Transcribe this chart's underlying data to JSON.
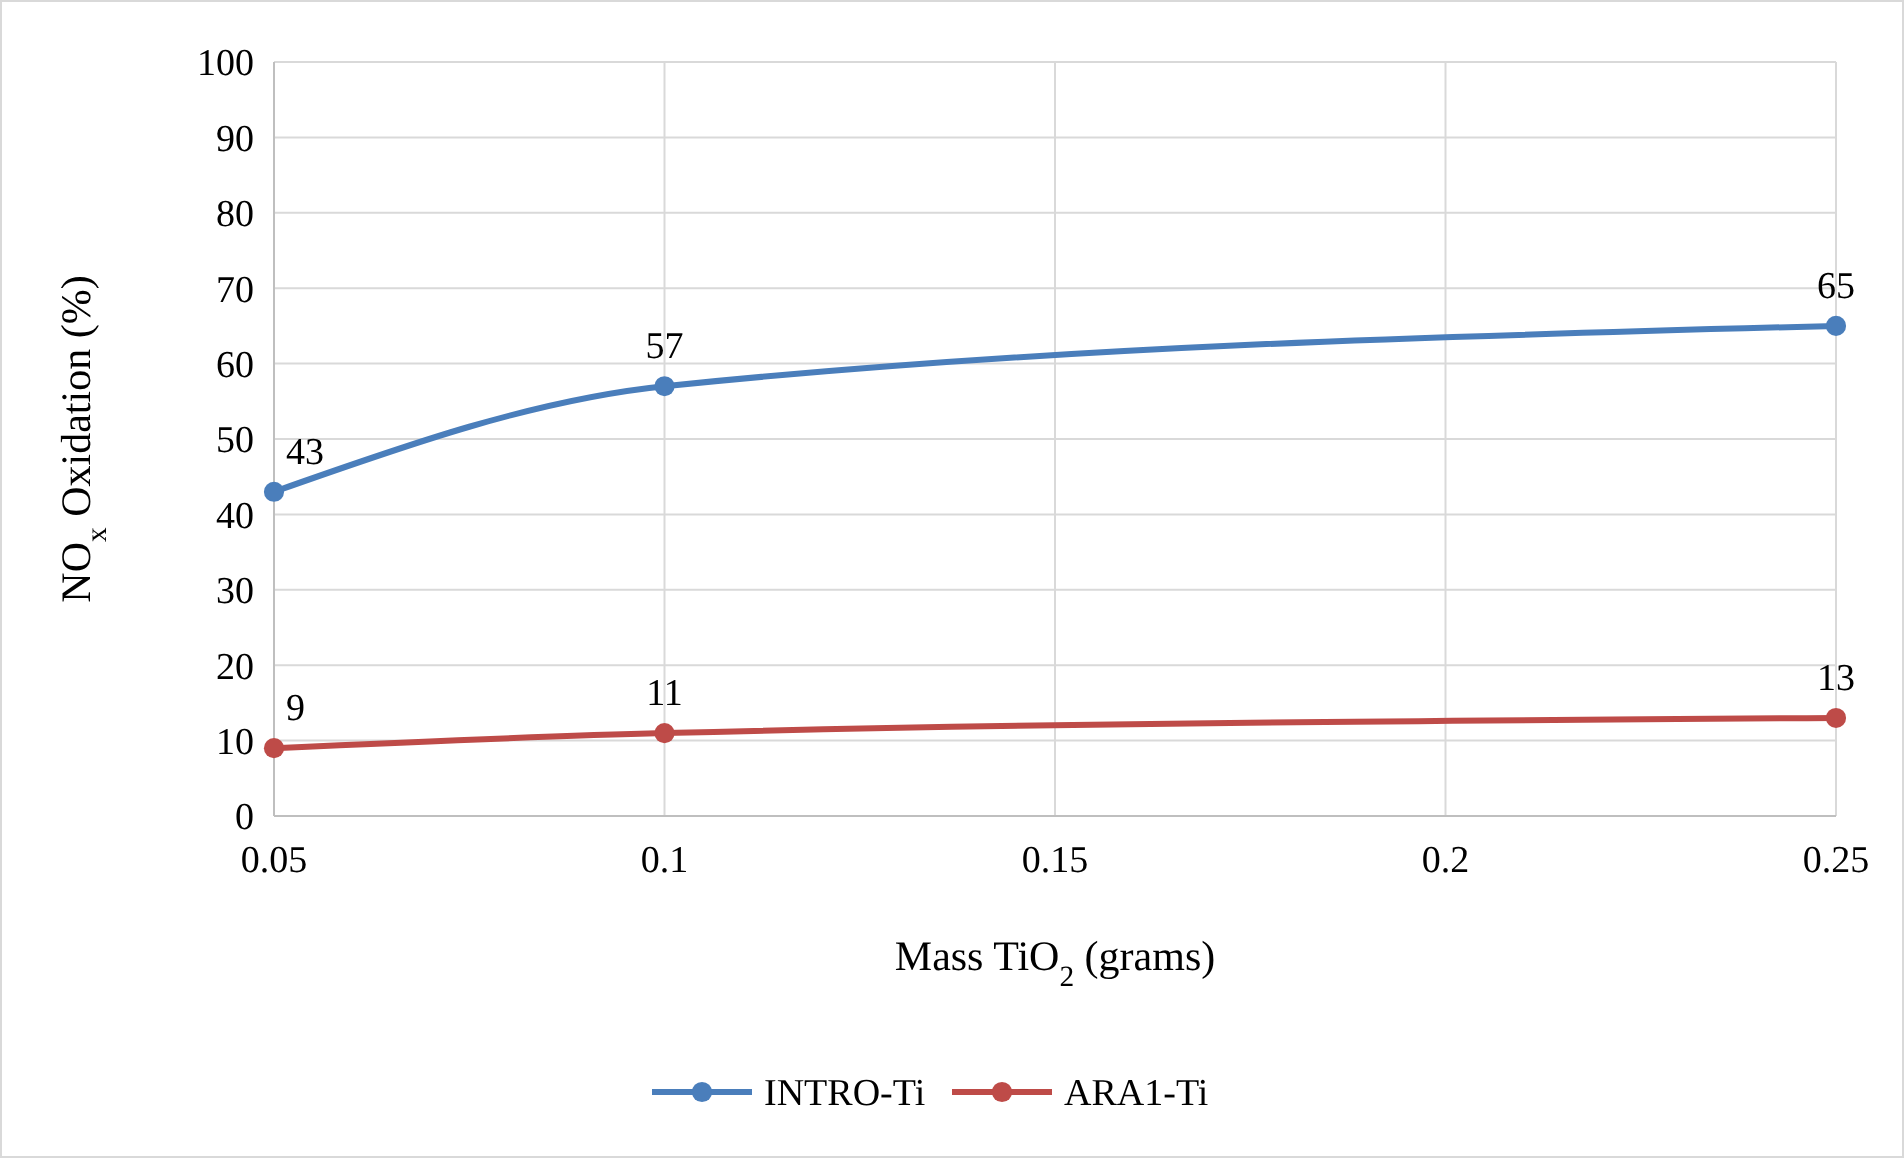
{
  "chart_data": {
    "type": "line",
    "xlabel": "Mass TiO$_{2}$ (grams)",
    "ylabel": "NO$_{x}$ Oxidation (%)",
    "x": [
      0.05,
      0.1,
      0.25
    ],
    "series": [
      {
        "name": "INTRO-Ti",
        "color": "#4a7ebb",
        "values": [
          43,
          57,
          65
        ]
      },
      {
        "name": "ARA1-Ti",
        "color": "#be4b48",
        "values": [
          9,
          11,
          13
        ]
      }
    ],
    "xlim": [
      0.05,
      0.25
    ],
    "xticks": [
      0.05,
      0.1,
      0.15,
      0.2,
      0.25
    ],
    "ylim": [
      0,
      100
    ],
    "yticks": [
      0,
      10,
      20,
      30,
      40,
      50,
      60,
      70,
      80,
      90,
      100
    ],
    "grid": true,
    "legend": "bottom",
    "marker": "circle",
    "line_style": "solid",
    "data_labels": true
  }
}
